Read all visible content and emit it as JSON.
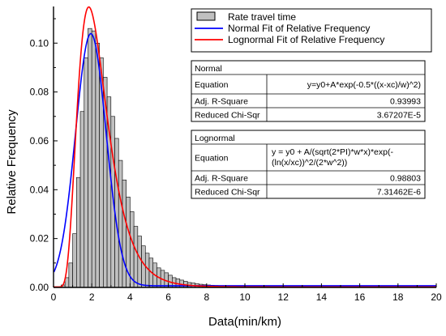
{
  "chart_data": {
    "type": "bar",
    "xlabel": "Data(min/km)",
    "ylabel": "Relative Frequency",
    "xlim": [
      0,
      20
    ],
    "ylim": [
      0,
      0.115
    ],
    "x_ticks": [
      0,
      2,
      4,
      6,
      8,
      10,
      12,
      14,
      16,
      18,
      20
    ],
    "y_ticks": [
      0.0,
      0.02,
      0.04,
      0.06,
      0.08,
      0.1
    ],
    "y_tick_labels": [
      "0.00",
      "0.02",
      "0.04",
      "0.06",
      "0.08",
      "0.10"
    ],
    "x_tick_labels": [
      "0",
      "2",
      "4",
      "6",
      "8",
      "10",
      "12",
      "14",
      "16",
      "18",
      "20"
    ],
    "grid": false,
    "legend_position": "top-right",
    "histogram": {
      "name": "Rate travel time",
      "bin_width": 0.2,
      "bin_start": 0.4,
      "color": "#c0c0c0",
      "values": [
        0.001,
        0.004,
        0.01,
        0.022,
        0.045,
        0.072,
        0.094,
        0.106,
        0.105,
        0.1,
        0.094,
        0.086,
        0.078,
        0.07,
        0.061,
        0.052,
        0.044,
        0.037,
        0.031,
        0.025,
        0.021,
        0.017,
        0.014,
        0.012,
        0.01,
        0.008,
        0.007,
        0.006,
        0.005,
        0.004,
        0.0035,
        0.003,
        0.0025,
        0.002,
        0.0018,
        0.0015,
        0.0013,
        0.0011,
        0.001,
        0.0009,
        0.0008,
        0.0007,
        0.0006,
        0.0005,
        0.0005,
        0.0004,
        0.0004,
        0.0003,
        0.0003,
        0.0003,
        0.0002,
        0.0002,
        0.0002,
        0.0002,
        0.0001,
        0.0001,
        0.0001,
        0.0001,
        0.0001,
        0.0001
      ]
    },
    "series": [
      {
        "name": "Normal Fit of Relative Frequency",
        "color": "#0000ff",
        "model": "normal",
        "params": {
          "y0": 0.00068,
          "xc": 1.95,
          "w": 0.8,
          "A": 0.1032
        }
      },
      {
        "name": "Lognormal  Fit of Relative Frequency",
        "color": "#ff0000",
        "model": "lognormal",
        "params": {
          "y0": 0.0002,
          "xc": 2.2,
          "w": 0.42,
          "A": 0.243
        }
      }
    ],
    "tables": [
      {
        "title": "Normal",
        "rows": [
          {
            "label": "Equation",
            "value": "y=y0+A*exp(-0.5*((x-xc)/w)^2)"
          },
          {
            "label": "Adj. R-Square",
            "value": "0.93993"
          },
          {
            "label": "Reduced Chi-Sqr",
            "value": "3.67207E-5"
          }
        ]
      },
      {
        "title": "Lognormal",
        "rows": [
          {
            "label": "Equation",
            "value": "y = y0 + A/(sqrt(2*PI)*w*x)*exp(-",
            "value2": "(ln(x/xc))^2/(2*w^2))"
          },
          {
            "label": "Adj. R-Square",
            "value": "0.98803"
          },
          {
            "label": "Reduced Chi-Sqr",
            "value": "7.31462E-6"
          }
        ]
      }
    ]
  }
}
